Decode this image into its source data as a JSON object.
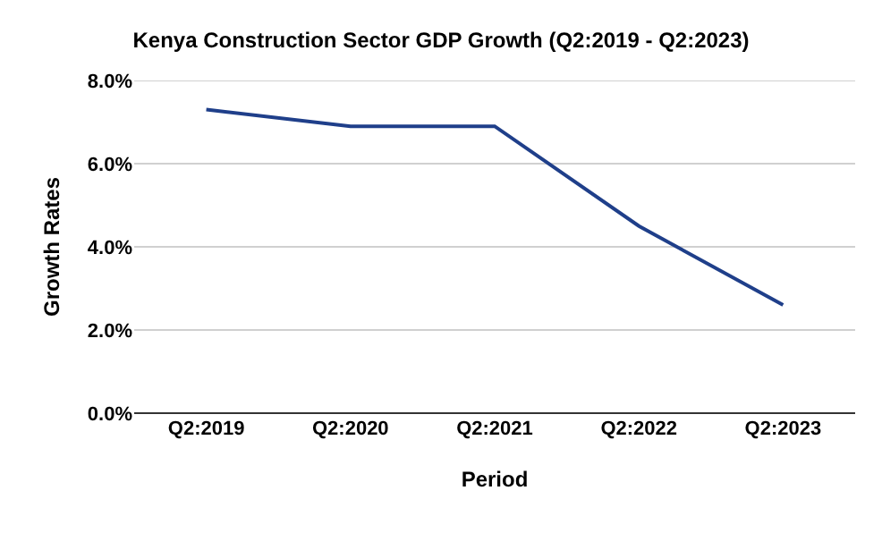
{
  "chart_data": {
    "type": "line",
    "title": "Kenya Construction Sector GDP Growth (Q2:2019 - Q2:2023)",
    "xlabel": "Period",
    "ylabel": "Growth Rates",
    "categories": [
      "Q2:2019",
      "Q2:2020",
      "Q2:2021",
      "Q2:2022",
      "Q2:2023"
    ],
    "series": [
      {
        "color": "#1f3f8a",
        "values": [
          7.3,
          6.9,
          6.9,
          4.5,
          2.6
        ]
      }
    ],
    "ylim": [
      0,
      8
    ],
    "yticks": [
      {
        "value": 0,
        "label": "0.0%"
      },
      {
        "value": 2,
        "label": "2.0%"
      },
      {
        "value": 4,
        "label": "4.0%"
      },
      {
        "value": 6,
        "label": "6.0%"
      },
      {
        "value": 8,
        "label": "8.0%"
      }
    ],
    "grid": "y",
    "marker": "none",
    "line_style": "solid"
  }
}
